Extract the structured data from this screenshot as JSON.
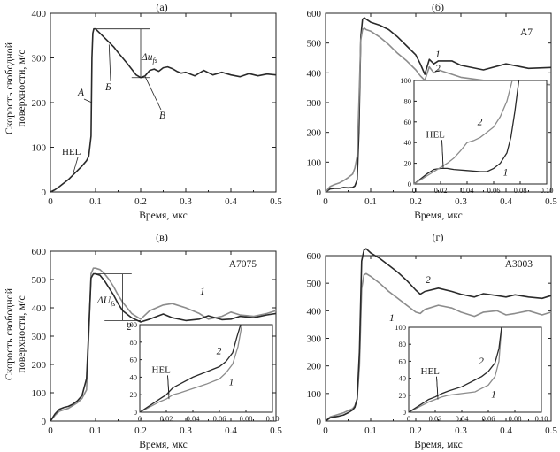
{
  "y_axis_label": [
    "Скорость свободной",
    "поверхности, м/с"
  ],
  "chart_data": [
    {
      "type": "line",
      "panel": "(а)",
      "xlabel": "Время, мкс",
      "ylabel": "Скорость свободной поверхности, м/с",
      "xlim": [
        0,
        0.5
      ],
      "ylim": [
        0,
        400
      ],
      "xticks": [
        0,
        0.1,
        0.2,
        0.3,
        0.4,
        0.5
      ],
      "yticks": [
        0,
        100,
        200,
        300,
        400
      ],
      "series": [
        {
          "color": "#2a2a2a",
          "x": [
            0.0,
            0.01,
            0.02,
            0.03,
            0.04,
            0.05,
            0.06,
            0.07,
            0.08,
            0.085,
            0.09,
            0.092,
            0.094,
            0.096,
            0.1,
            0.105,
            0.11,
            0.12,
            0.13,
            0.14,
            0.15,
            0.16,
            0.17,
            0.18,
            0.19,
            0.2,
            0.21,
            0.22,
            0.23,
            0.24,
            0.25,
            0.26,
            0.27,
            0.28,
            0.29,
            0.3,
            0.32,
            0.34,
            0.36,
            0.38,
            0.4,
            0.42,
            0.44,
            0.46,
            0.48,
            0.5
          ],
          "y": [
            0,
            5,
            12,
            20,
            28,
            38,
            48,
            58,
            70,
            80,
            125,
            300,
            355,
            365,
            365,
            360,
            355,
            345,
            335,
            325,
            312,
            300,
            288,
            275,
            262,
            256,
            260,
            272,
            275,
            270,
            278,
            280,
            276,
            270,
            266,
            268,
            260,
            272,
            262,
            268,
            262,
            258,
            265,
            260,
            264,
            262
          ]
        }
      ],
      "annotations": {
        "hel": "HEL",
        "a": "А",
        "b": "Б",
        "v": "В",
        "delta": "Δu",
        "delta_sub": "fs"
      }
    },
    {
      "type": "line",
      "panel": "(б)",
      "alloy": "А7",
      "xlabel": "Время, мкс",
      "xlim": [
        0,
        0.5
      ],
      "ylim": [
        0,
        600
      ],
      "xticks": [
        0,
        0.1,
        0.2,
        0.3,
        0.4,
        0.5
      ],
      "yticks": [
        0,
        100,
        200,
        300,
        400,
        500,
        600
      ],
      "series": [
        {
          "label": "1",
          "color": "#2a2a2a",
          "x": [
            0.0,
            0.01,
            0.02,
            0.03,
            0.04,
            0.05,
            0.06,
            0.065,
            0.07,
            0.074,
            0.078,
            0.082,
            0.086,
            0.09,
            0.1,
            0.12,
            0.14,
            0.16,
            0.18,
            0.2,
            0.21,
            0.22,
            0.23,
            0.24,
            0.25,
            0.28,
            0.3,
            0.35,
            0.4,
            0.45,
            0.5
          ],
          "y": [
            0,
            10,
            12,
            12,
            15,
            14,
            15,
            20,
            40,
            200,
            520,
            580,
            585,
            580,
            570,
            560,
            545,
            520,
            490,
            460,
            430,
            395,
            445,
            430,
            440,
            440,
            425,
            410,
            430,
            415,
            418
          ]
        },
        {
          "label": "2",
          "color": "#8c8c8c",
          "x": [
            0.0,
            0.01,
            0.02,
            0.03,
            0.04,
            0.05,
            0.06,
            0.065,
            0.07,
            0.074,
            0.078,
            0.082,
            0.086,
            0.09,
            0.1,
            0.12,
            0.14,
            0.16,
            0.18,
            0.2,
            0.21,
            0.22,
            0.23,
            0.24,
            0.25,
            0.28,
            0.3,
            0.35,
            0.4,
            0.45,
            0.5
          ],
          "y": [
            0,
            18,
            25,
            30,
            38,
            48,
            60,
            80,
            120,
            300,
            510,
            545,
            550,
            545,
            540,
            520,
            495,
            465,
            440,
            410,
            390,
            375,
            420,
            400,
            410,
            395,
            385,
            375,
            375,
            365,
            360
          ]
        }
      ],
      "inset": {
        "xlim": [
          0,
          0.1
        ],
        "ylim": [
          0,
          100
        ],
        "xticks": [
          "0",
          "0.02",
          "0.04",
          "0.06",
          "0.08",
          "0.10"
        ],
        "yticks": [
          "0",
          "20",
          "40",
          "60",
          "80",
          "100"
        ],
        "hel": "HEL",
        "series": [
          {
            "label": "1",
            "color": "#2a2a2a",
            "x": [
              0.0,
              0.01,
              0.015,
              0.02,
              0.025,
              0.03,
              0.04,
              0.05,
              0.055,
              0.06,
              0.065,
              0.07,
              0.073,
              0.076,
              0.079
            ],
            "y": [
              0,
              10,
              14,
              15,
              15,
              14,
              13,
              12,
              12,
              15,
              20,
              30,
              45,
              70,
              100
            ]
          },
          {
            "label": "2",
            "color": "#8c8c8c",
            "x": [
              0.0,
              0.01,
              0.015,
              0.02,
              0.025,
              0.03,
              0.035,
              0.04,
              0.045,
              0.05,
              0.055,
              0.06,
              0.065,
              0.07,
              0.074
            ],
            "y": [
              0,
              8,
              12,
              16,
              20,
              25,
              32,
              40,
              42,
              45,
              50,
              55,
              65,
              80,
              100
            ]
          }
        ]
      }
    },
    {
      "type": "line",
      "panel": "(в)",
      "alloy": "А7075",
      "xlabel": "Время, мкс",
      "ylabel": "Скорость свободной поверхности, м/с",
      "xlim": [
        0,
        0.5
      ],
      "ylim": [
        0,
        600
      ],
      "xticks": [
        0,
        0.1,
        0.2,
        0.3,
        0.4,
        0.5
      ],
      "yticks": [
        0,
        100,
        200,
        300,
        400,
        500,
        600
      ],
      "series": [
        {
          "label": "1",
          "color": "#8c8c8c",
          "x": [
            0.0,
            0.01,
            0.02,
            0.03,
            0.04,
            0.05,
            0.06,
            0.07,
            0.08,
            0.085,
            0.09,
            0.095,
            0.1,
            0.11,
            0.12,
            0.13,
            0.14,
            0.15,
            0.16,
            0.18,
            0.2,
            0.22,
            0.25,
            0.27,
            0.3,
            0.33,
            0.35,
            0.38,
            0.4,
            0.42,
            0.45,
            0.48,
            0.5
          ],
          "y": [
            0,
            20,
            35,
            40,
            45,
            55,
            65,
            80,
            110,
            300,
            520,
            540,
            540,
            535,
            520,
            500,
            475,
            445,
            420,
            380,
            360,
            390,
            410,
            415,
            400,
            380,
            360,
            370,
            385,
            375,
            370,
            380,
            390
          ]
        },
        {
          "label": "2",
          "color": "#2a2a2a",
          "x": [
            0.0,
            0.01,
            0.02,
            0.03,
            0.04,
            0.05,
            0.06,
            0.07,
            0.08,
            0.085,
            0.09,
            0.095,
            0.1,
            0.11,
            0.12,
            0.13,
            0.14,
            0.15,
            0.16,
            0.18,
            0.2,
            0.22,
            0.25,
            0.27,
            0.3,
            0.33,
            0.35,
            0.38,
            0.4,
            0.42,
            0.45,
            0.48,
            0.5
          ],
          "y": [
            0,
            25,
            42,
            48,
            52,
            60,
            72,
            90,
            150,
            320,
            505,
            520,
            520,
            515,
            495,
            470,
            445,
            415,
            390,
            365,
            350,
            360,
            378,
            365,
            355,
            360,
            372,
            358,
            360,
            370,
            365,
            375,
            380
          ]
        }
      ],
      "annotations": {
        "delta": "ΔU",
        "delta_sub": "fs"
      },
      "inset": {
        "xlim": [
          0,
          0.1
        ],
        "ylim": [
          0,
          100
        ],
        "xticks": [
          "0",
          "0.02",
          "0.04",
          "0.06",
          "0.08",
          "0.10"
        ],
        "yticks": [
          "0",
          "20",
          "40",
          "60",
          "80",
          "100"
        ],
        "hel": "HEL",
        "series": [
          {
            "label": "1",
            "color": "#8c8c8c",
            "x": [
              0.0,
              0.01,
              0.015,
              0.02,
              0.025,
              0.03,
              0.04,
              0.05,
              0.06,
              0.065,
              0.07,
              0.074,
              0.077
            ],
            "y": [
              0,
              8,
              12,
              15,
              20,
              22,
              27,
              32,
              38,
              45,
              55,
              75,
              100
            ]
          },
          {
            "label": "2",
            "color": "#2a2a2a",
            "x": [
              0.0,
              0.01,
              0.015,
              0.02,
              0.025,
              0.03,
              0.04,
              0.05,
              0.06,
              0.065,
              0.07,
              0.073,
              0.076
            ],
            "y": [
              0,
              10,
              15,
              20,
              28,
              32,
              40,
              46,
              52,
              58,
              68,
              85,
              100
            ]
          }
        ]
      }
    },
    {
      "type": "line",
      "panel": "(г)",
      "alloy": "А3003",
      "xlabel": "Время, мкс",
      "xlim": [
        0,
        0.5
      ],
      "ylim": [
        0,
        600
      ],
      "xticks": [
        0,
        0.1,
        0.2,
        0.3,
        0.4,
        0.5
      ],
      "yticks": [
        0,
        100,
        200,
        300,
        400,
        500,
        600
      ],
      "series": [
        {
          "label": "1",
          "color": "#8c8c8c",
          "x": [
            0.0,
            0.01,
            0.02,
            0.03,
            0.04,
            0.05,
            0.06,
            0.065,
            0.07,
            0.075,
            0.08,
            0.085,
            0.09,
            0.1,
            0.12,
            0.14,
            0.16,
            0.18,
            0.2,
            0.21,
            0.22,
            0.25,
            0.28,
            0.3,
            0.33,
            0.35,
            0.38,
            0.4,
            0.42,
            0.45,
            0.48,
            0.5
          ],
          "y": [
            0,
            15,
            20,
            25,
            30,
            38,
            45,
            55,
            80,
            200,
            480,
            530,
            535,
            525,
            500,
            470,
            445,
            420,
            395,
            390,
            405,
            420,
            410,
            395,
            380,
            395,
            400,
            385,
            390,
            400,
            385,
            395
          ]
        },
        {
          "label": "2",
          "color": "#2a2a2a",
          "x": [
            0.0,
            0.01,
            0.02,
            0.03,
            0.04,
            0.05,
            0.06,
            0.065,
            0.07,
            0.075,
            0.08,
            0.085,
            0.09,
            0.1,
            0.12,
            0.14,
            0.16,
            0.18,
            0.2,
            0.21,
            0.22,
            0.25,
            0.28,
            0.3,
            0.33,
            0.35,
            0.38,
            0.4,
            0.42,
            0.45,
            0.48,
            0.5
          ],
          "y": [
            0,
            12,
            15,
            18,
            22,
            30,
            40,
            50,
            80,
            250,
            580,
            620,
            625,
            610,
            590,
            565,
            540,
            510,
            475,
            460,
            470,
            482,
            470,
            460,
            450,
            462,
            455,
            450,
            458,
            450,
            445,
            455
          ]
        }
      ],
      "inset": {
        "xlim": [
          0,
          0.1
        ],
        "ylim": [
          0,
          100
        ],
        "xticks": [
          "0",
          "0.02",
          "0.04",
          "0.06",
          "0.08",
          "0.10"
        ],
        "yticks": [
          "0",
          "20",
          "40",
          "60",
          "80",
          "100"
        ],
        "hel": "HEL",
        "series": [
          {
            "label": "1",
            "color": "#8c8c8c",
            "x": [
              0.0,
              0.01,
              0.015,
              0.02,
              0.025,
              0.03,
              0.04,
              0.05,
              0.055,
              0.06,
              0.065,
              0.068,
              0.07
            ],
            "y": [
              0,
              8,
              12,
              15,
              18,
              20,
              22,
              24,
              28,
              32,
              42,
              60,
              100
            ]
          },
          {
            "label": "2",
            "color": "#2a2a2a",
            "x": [
              0.0,
              0.01,
              0.015,
              0.02,
              0.025,
              0.03,
              0.04,
              0.05,
              0.055,
              0.06,
              0.065,
              0.068,
              0.07
            ],
            "y": [
              0,
              10,
              15,
              18,
              22,
              25,
              30,
              38,
              42,
              48,
              58,
              75,
              100
            ]
          }
        ]
      }
    }
  ]
}
